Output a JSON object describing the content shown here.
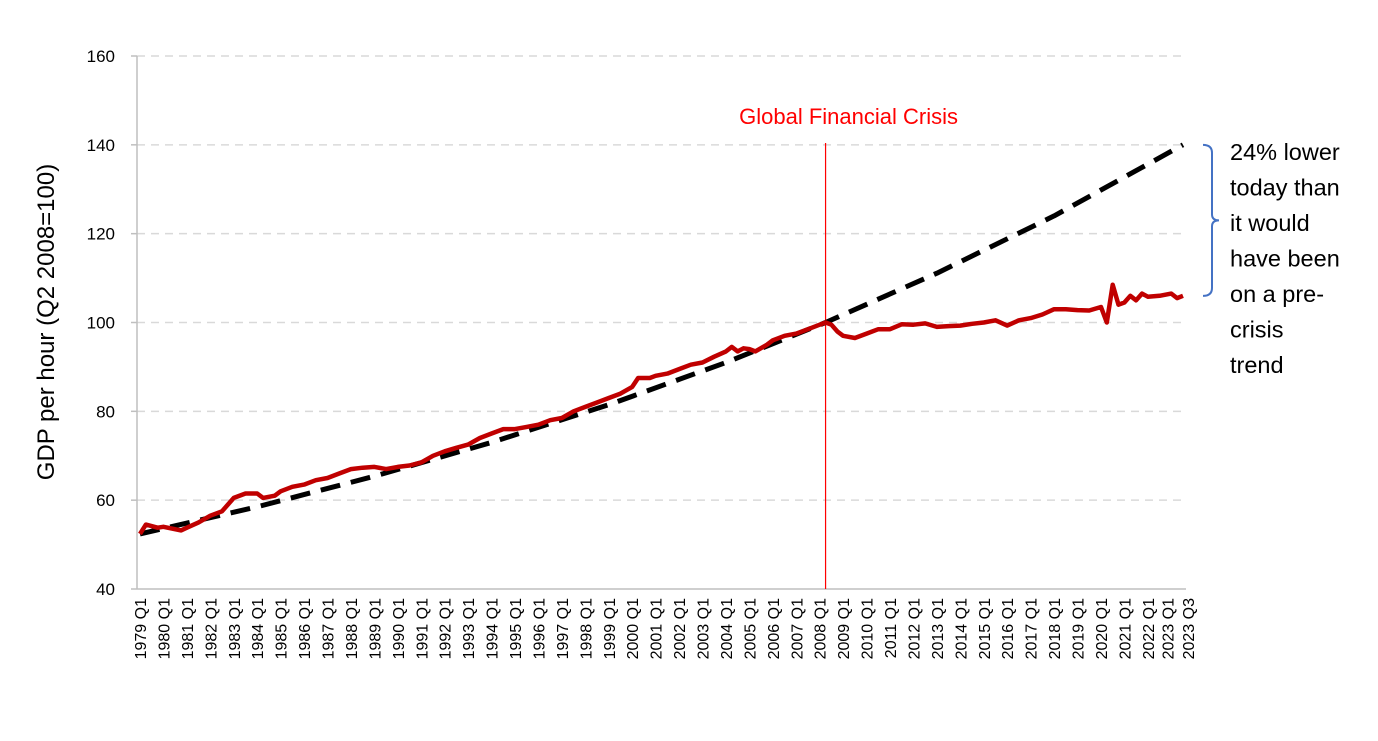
{
  "chart_data": {
    "type": "line",
    "title": "",
    "xlabel": "",
    "ylabel": "GDP per hour (Q2 2008=100)",
    "ylim": [
      40,
      160
    ],
    "yticks": [
      40,
      60,
      80,
      100,
      120,
      140,
      160
    ],
    "grid": true,
    "x_start": "1979 Q1",
    "x_end": "2023 Q3",
    "xtick_labels": [
      "1979 Q1",
      "1980 Q1",
      "1981 Q1",
      "1982 Q1",
      "1983 Q1",
      "1984 Q1",
      "1985 Q1",
      "1986 Q1",
      "1987 Q1",
      "1988 Q1",
      "1989 Q1",
      "1990 Q1",
      "1991 Q1",
      "1992 Q1",
      "1993 Q1",
      "1994 Q1",
      "1995 Q1",
      "1996 Q1",
      "1997 Q1",
      "1998 Q1",
      "1999 Q1",
      "2000 Q1",
      "2001 Q1",
      "2002 Q1",
      "2003 Q1",
      "2004 Q1",
      "2005 Q1",
      "2006 Q1",
      "2007 Q1",
      "2008 Q1",
      "2009 Q1",
      "2010 Q1",
      "2011 Q1",
      "2012 Q1",
      "2013 Q1",
      "2014 Q1",
      "2015 Q1",
      "2016 Q1",
      "2017 Q1",
      "2018 Q1",
      "2019 Q1",
      "2020 Q1",
      "2021 Q1",
      "2022 Q1",
      "2023 Q1",
      "2023 Q3"
    ],
    "series": [
      {
        "style": "solid",
        "color": "#c00000",
        "points": [
          [
            "1979 Q1",
            52.4
          ],
          [
            "1979 Q2",
            54.5
          ],
          [
            "1979 Q4",
            53.8
          ],
          [
            "1980 Q1",
            54
          ],
          [
            "1980 Q4",
            53.2
          ],
          [
            "1981 Q1",
            53.8
          ],
          [
            "1981 Q3",
            55
          ],
          [
            "1982 Q1",
            56.5
          ],
          [
            "1982 Q3",
            57.5
          ],
          [
            "1983 Q1",
            60.5
          ],
          [
            "1983 Q3",
            61.5
          ],
          [
            "1984 Q1",
            61.5
          ],
          [
            "1984 Q2",
            60.5
          ],
          [
            "1984 Q4",
            61
          ],
          [
            "1985 Q1",
            62
          ],
          [
            "1985 Q3",
            63
          ],
          [
            "1986 Q1",
            63.5
          ],
          [
            "1986 Q3",
            64.5
          ],
          [
            "1987 Q1",
            65
          ],
          [
            "1987 Q3",
            66
          ],
          [
            "1988 Q1",
            67
          ],
          [
            "1988 Q3",
            67.3
          ],
          [
            "1989 Q1",
            67.5
          ],
          [
            "1989 Q3",
            67
          ],
          [
            "1990 Q1",
            67.5
          ],
          [
            "1990 Q3",
            67.8
          ],
          [
            "1991 Q1",
            68.5
          ],
          [
            "1991 Q3",
            70
          ],
          [
            "1992 Q1",
            71
          ],
          [
            "1992 Q3",
            71.8
          ],
          [
            "1993 Q1",
            72.5
          ],
          [
            "1993 Q3",
            74
          ],
          [
            "1994 Q1",
            75
          ],
          [
            "1994 Q3",
            76
          ],
          [
            "1995 Q1",
            76
          ],
          [
            "1995 Q3",
            76.5
          ],
          [
            "1996 Q1",
            77
          ],
          [
            "1996 Q3",
            78
          ],
          [
            "1997 Q1",
            78.5
          ],
          [
            "1997 Q3",
            80
          ],
          [
            "1998 Q1",
            81
          ],
          [
            "1998 Q3",
            82
          ],
          [
            "1999 Q1",
            83
          ],
          [
            "1999 Q3",
            84
          ],
          [
            "2000 Q1",
            85.5
          ],
          [
            "2000 Q2",
            87.5
          ],
          [
            "2000 Q4",
            87.5
          ],
          [
            "2001 Q1",
            88
          ],
          [
            "2001 Q3",
            88.5
          ],
          [
            "2002 Q1",
            89.5
          ],
          [
            "2002 Q3",
            90.5
          ],
          [
            "2003 Q1",
            91
          ],
          [
            "2003 Q3",
            92.3
          ],
          [
            "2004 Q1",
            93.5
          ],
          [
            "2004 Q2",
            94.5
          ],
          [
            "2004 Q3",
            93.5
          ],
          [
            "2004 Q4",
            94.2
          ],
          [
            "2005 Q1",
            94
          ],
          [
            "2005 Q2",
            93.5
          ],
          [
            "2005 Q4",
            95
          ],
          [
            "2006 Q1",
            96
          ],
          [
            "2006 Q3",
            97
          ],
          [
            "2007 Q1",
            97.5
          ],
          [
            "2007 Q3",
            98.5
          ],
          [
            "2008 Q1",
            99.5
          ],
          [
            "2008 Q2",
            100
          ],
          [
            "2008 Q3",
            99.5
          ],
          [
            "2008 Q4",
            98
          ],
          [
            "2009 Q1",
            97
          ],
          [
            "2009 Q3",
            96.5
          ],
          [
            "2010 Q1",
            97.5
          ],
          [
            "2010 Q3",
            98.5
          ],
          [
            "2011 Q1",
            98.5
          ],
          [
            "2011 Q3",
            99.6
          ],
          [
            "2012 Q1",
            99.5
          ],
          [
            "2012 Q3",
            99.8
          ],
          [
            "2013 Q1",
            99
          ],
          [
            "2013 Q3",
            99.2
          ],
          [
            "2014 Q1",
            99.3
          ],
          [
            "2014 Q3",
            99.7
          ],
          [
            "2015 Q1",
            100
          ],
          [
            "2015 Q3",
            100.5
          ],
          [
            "2016 Q1",
            99.3
          ],
          [
            "2016 Q3",
            100.5
          ],
          [
            "2017 Q1",
            101
          ],
          [
            "2017 Q3",
            101.8
          ],
          [
            "2018 Q1",
            103
          ],
          [
            "2018 Q3",
            103
          ],
          [
            "2019 Q1",
            102.8
          ],
          [
            "2019 Q3",
            102.7
          ],
          [
            "2020 Q1",
            103.5
          ],
          [
            "2020 Q2",
            100
          ],
          [
            "2020 Q3",
            108.5
          ],
          [
            "2020 Q4",
            104
          ],
          [
            "2021 Q1",
            104.5
          ],
          [
            "2021 Q2",
            106
          ],
          [
            "2021 Q3",
            105
          ],
          [
            "2021 Q4",
            106.5
          ],
          [
            "2022 Q1",
            105.8
          ],
          [
            "2022 Q3",
            106
          ],
          [
            "2023 Q1",
            106.5
          ],
          [
            "2023 Q2",
            105.5
          ],
          [
            "2023 Q3",
            106
          ]
        ]
      },
      {
        "style": "dashed",
        "color": "#000000",
        "points": [
          [
            "1979 Q1",
            52.4
          ],
          [
            "1984 Q1",
            58.5
          ],
          [
            "1989 Q1",
            65.4
          ],
          [
            "1994 Q1",
            73.0
          ],
          [
            "1999 Q1",
            81.5
          ],
          [
            "2004 Q1",
            91.0
          ],
          [
            "2008 Q2",
            100
          ],
          [
            "2013 Q1",
            111.1
          ],
          [
            "2018 Q1",
            124.0
          ],
          [
            "2023 Q3",
            140.0
          ]
        ]
      }
    ],
    "annotations": {
      "crisis_label": "Global Financial Crisis",
      "crisis_at": "2008 Q2",
      "crisis_color": "#ff0000",
      "bracket_color": "#4472c4",
      "bracket_range": [
        106,
        140
      ],
      "bracket_text": [
        "24% lower",
        "today than",
        "it would",
        "have been",
        "on a pre-",
        "crisis",
        "trend"
      ]
    }
  }
}
